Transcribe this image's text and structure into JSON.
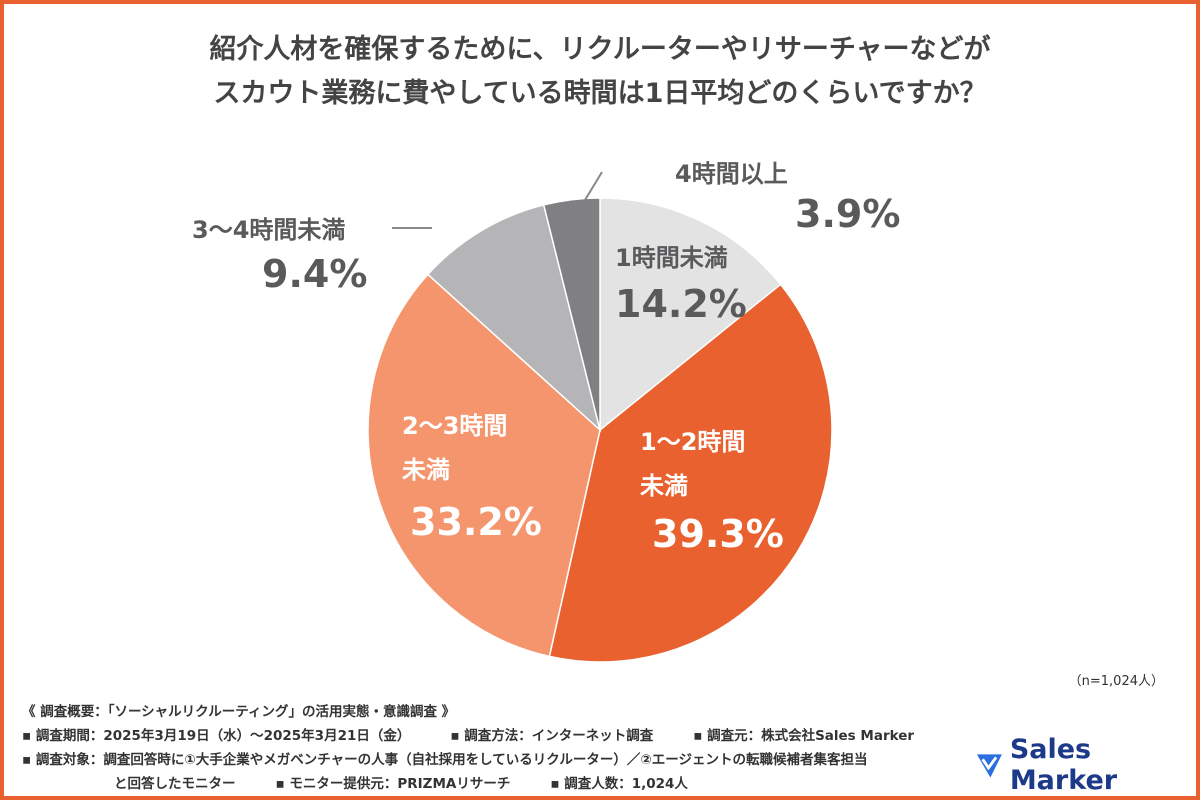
{
  "title_lines": [
    "紹介人材を確保するために、リクルーターやリサーチャーなどが",
    "スカウト業務に費やしている時間は1日平均どのくらいですか？"
  ],
  "chart_data": {
    "type": "pie",
    "title": "紹介人材を確保するために、リクルーターやリサーチャーなどがスカウト業務に費やしている時間は1日平均どのくらいですか？",
    "start": "top",
    "direction": "clockwise",
    "slices": [
      {
        "label": "1時間未満",
        "value": 14.2,
        "display": "14.2%",
        "color": "#e4e3e4"
      },
      {
        "label": "1〜2時間未満",
        "value": 39.3,
        "display": "39.3%",
        "color": "#e8612f"
      },
      {
        "label": "2〜3時間未満",
        "value": 33.2,
        "display": "33.2%",
        "color": "#f4956d"
      },
      {
        "label": "3〜4時間未満",
        "value": 9.4,
        "display": "9.4%",
        "color": "#b5b4b6"
      },
      {
        "label": "4時間以上",
        "value": 3.9,
        "display": "3.9%",
        "color": "#807f81"
      }
    ],
    "label_lines": {
      "s1": [
        "1〜2時間",
        "未満"
      ],
      "s2": [
        "2〜3時間",
        "未満"
      ]
    }
  },
  "sample_note": "（n=1,024人）",
  "footer": {
    "heading": "《 調査概要：「ソーシャルリクルーティング」の活用実態・意識調査 》",
    "period": "▪ 調査期間：2025年3月19日（水）〜2025年3月21日（金）",
    "method": "▪ 調査方法：インターネット調査",
    "source": "▪ 調査元：株式会社Sales Marker",
    "target": "▪ 調査対象：調査回答時に①大手企業やメガベンチャーの人事（自社採用をしているリクルーター）／②エージェントの転職候補者集客担当",
    "target2": "と回答したモニター",
    "provider": "▪ モニター提供元：PRIZMAリサーチ",
    "count": "▪ 調査人数：1,024人"
  },
  "logo": {
    "text": "Sales Marker",
    "color": "#1d3a8a"
  }
}
